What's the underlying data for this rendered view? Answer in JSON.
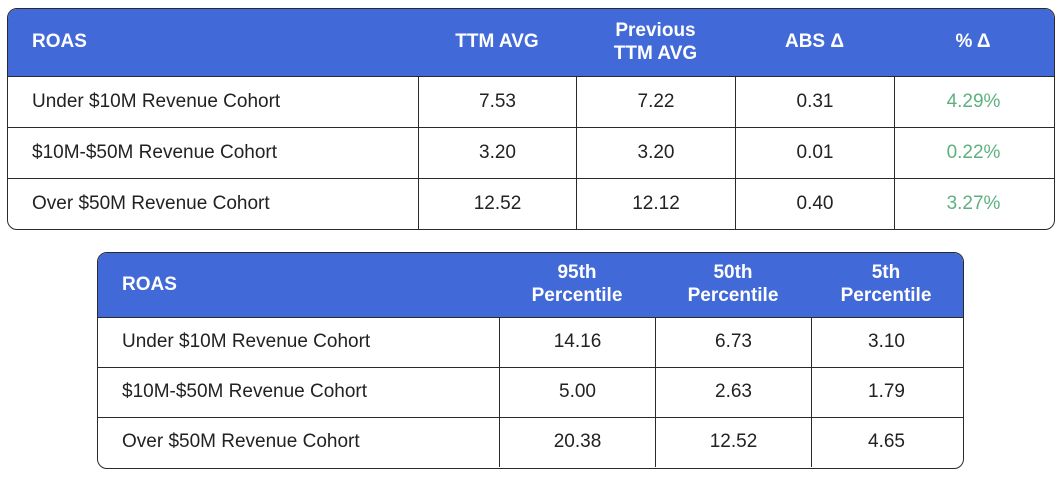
{
  "colors": {
    "header_bg": "#4169d8",
    "header_text": "#ffffff",
    "positive_change": "#5fb07f",
    "border": "#2a2a2a"
  },
  "table_top": {
    "headers": [
      "ROAS",
      "TTM AVG",
      "Previous\nTTM AVG",
      "ABS Δ",
      "% Δ"
    ],
    "rows": [
      {
        "label": "Under $10M Revenue Cohort",
        "ttm_avg": "7.53",
        "prev_ttm_avg": "7.22",
        "abs_delta": "0.31",
        "pct_delta": "4.29%"
      },
      {
        "label": "$10M-$50M Revenue Cohort",
        "ttm_avg": "3.20",
        "prev_ttm_avg": "3.20",
        "abs_delta": "0.01",
        "pct_delta": "0.22%"
      },
      {
        "label": "Over $50M Revenue Cohort",
        "ttm_avg": "12.52",
        "prev_ttm_avg": "12.12",
        "abs_delta": "0.40",
        "pct_delta": "3.27%"
      }
    ]
  },
  "table_bottom": {
    "headers": [
      "ROAS",
      "95th\nPercentile",
      "50th\nPercentile",
      "5th\nPercentile"
    ],
    "rows": [
      {
        "label": "Under $10M Revenue Cohort",
        "p95": "14.16",
        "p50": "6.73",
        "p5": "3.10"
      },
      {
        "label": "$10M-$50M Revenue Cohort",
        "p95": "5.00",
        "p50": "2.63",
        "p5": "1.79"
      },
      {
        "label": "Over $50M Revenue Cohort",
        "p95": "20.38",
        "p50": "12.52",
        "p5": "4.65"
      }
    ]
  }
}
